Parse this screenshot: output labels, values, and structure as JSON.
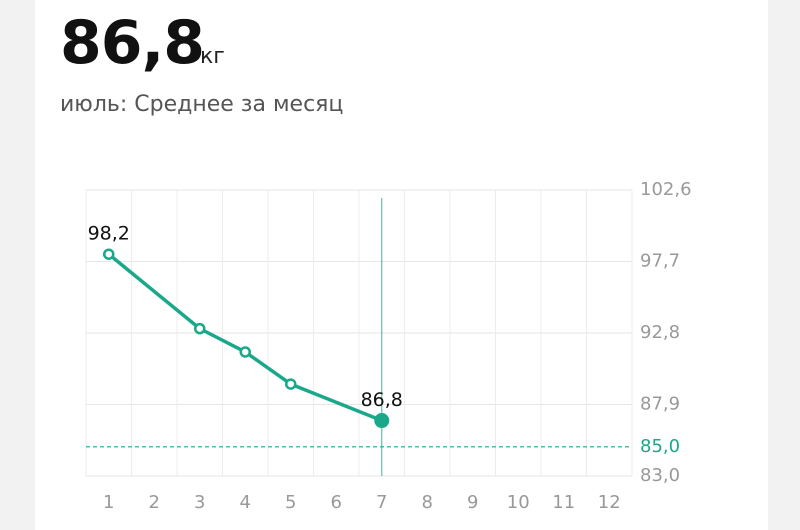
{
  "header": {
    "value": "86,8",
    "unit": "кг",
    "subtitle": "июль: Среднее за месяц"
  },
  "chart_data": {
    "type": "line",
    "x": [
      1,
      3,
      4,
      5,
      7
    ],
    "values": [
      98.2,
      93.1,
      91.5,
      89.3,
      86.8
    ],
    "value_labels": [
      "98,2",
      null,
      null,
      null,
      "86,8"
    ],
    "color": "#1aa88a",
    "xlim": [
      0.5,
      12.5
    ],
    "xticks": [
      1,
      2,
      3,
      4,
      5,
      6,
      7,
      8,
      9,
      10,
      11,
      12
    ],
    "ylim": [
      83.0,
      102.6
    ],
    "yticks": [
      {
        "value": 83.0,
        "label": "83,0"
      },
      {
        "value": 87.9,
        "label": "87,9"
      },
      {
        "value": 92.8,
        "label": "92,8"
      },
      {
        "value": 97.7,
        "label": "97,7"
      },
      {
        "value": 102.6,
        "label": "102,6"
      }
    ],
    "target": {
      "value": 85.0,
      "label": "85,0"
    },
    "grid": true
  }
}
